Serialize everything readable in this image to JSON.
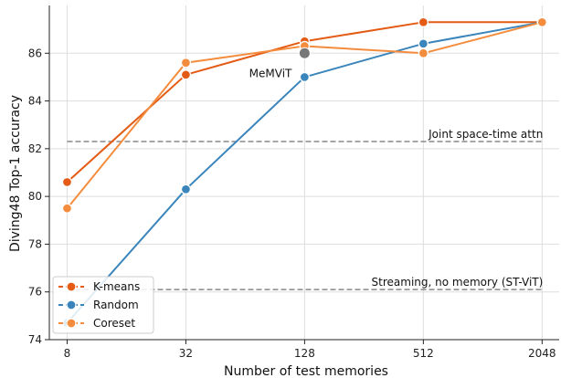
{
  "chart_data": {
    "type": "line",
    "xlabel": "Number of test memories",
    "ylabel": "Diving48 Top-1 accuracy",
    "x_scale": "log2",
    "x_ticks": [
      "8",
      "32",
      "128",
      "512",
      "2048"
    ],
    "xlim": [
      6.5,
      2500
    ],
    "ylim": [
      74,
      88
    ],
    "y_ticks": [
      74,
      76,
      78,
      80,
      82,
      84,
      86
    ],
    "grid": true,
    "legend": "bottom-left",
    "series": [
      {
        "name": "K-means",
        "color": "#e35b14",
        "x": [
          8,
          32,
          128,
          512,
          2048
        ],
        "y": [
          80.6,
          85.1,
          86.5,
          87.3,
          87.3
        ]
      },
      {
        "name": "Random",
        "color": "#3a85bb",
        "x": [
          8,
          32,
          128,
          512,
          2048
        ],
        "y": [
          74.7,
          80.3,
          85.0,
          86.4,
          87.3
        ]
      },
      {
        "name": "Coreset",
        "color": "#f48c3d",
        "x": [
          8,
          32,
          128,
          512,
          2048
        ],
        "y": [
          79.5,
          85.6,
          86.3,
          86.0,
          87.3
        ]
      }
    ],
    "reference_lines": [
      {
        "label": "Joint space-time attn",
        "y": 82.3
      },
      {
        "label": "Streaming, no memory (ST-ViT)",
        "y": 76.1
      }
    ],
    "point_annotations": [
      {
        "label": "MeMViT",
        "x": 128,
        "y": 86.0,
        "color": "#777777"
      }
    ]
  }
}
